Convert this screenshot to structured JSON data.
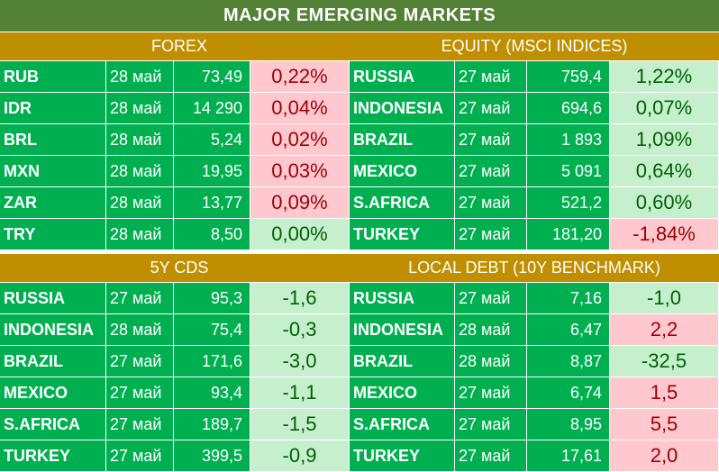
{
  "title": "MAJOR   EMERGING MARKETS",
  "colors": {
    "title_bg": "#538135",
    "header_bg": "#bf8f00",
    "cell_bg": "#00b050",
    "negative_bg": "#ffc7ce",
    "negative_text": "#9c0006",
    "positive_bg": "#c6efce",
    "positive_text": "#006100"
  },
  "sections": [
    {
      "header": "FOREX",
      "rows": [
        {
          "name": "RUB",
          "date": "28 май",
          "value": "73,49",
          "change": "0,22%",
          "state": "neg"
        },
        {
          "name": "IDR",
          "date": "28 май",
          "value": "14 290",
          "change": "0,04%",
          "state": "neg"
        },
        {
          "name": "BRL",
          "date": "28 май",
          "value": "5,24",
          "change": "0,02%",
          "state": "neg"
        },
        {
          "name": "MXN",
          "date": "28 май",
          "value": "19,95",
          "change": "0,03%",
          "state": "neg"
        },
        {
          "name": "ZAR",
          "date": "28 май",
          "value": "13,77",
          "change": "0,09%",
          "state": "neg"
        },
        {
          "name": "TRY",
          "date": "28 май",
          "value": "8,50",
          "change": "0,00%",
          "state": "pos"
        }
      ]
    },
    {
      "header": "EQUITY (MSCI INDICES)",
      "rows": [
        {
          "name": "RUSSIA",
          "date": "27 май",
          "value": "759,4",
          "change": "1,22%",
          "state": "pos"
        },
        {
          "name": "INDONESIA",
          "date": "27 май",
          "value": "694,6",
          "change": "0,07%",
          "state": "pos"
        },
        {
          "name": "BRAZIL",
          "date": "27 май",
          "value": "1 893",
          "change": "1,09%",
          "state": "pos"
        },
        {
          "name": "MEXICO",
          "date": "27 май",
          "value": "5 091",
          "change": "0,64%",
          "state": "pos"
        },
        {
          "name": "S.AFRICA",
          "date": "27 май",
          "value": "521,2",
          "change": "0,60%",
          "state": "pos"
        },
        {
          "name": "TURKEY",
          "date": "27 май",
          "value": "181,20",
          "change": "-1,84%",
          "state": "neg"
        }
      ]
    },
    {
      "header": "5Y CDS",
      "rows": [
        {
          "name": "RUSSIA",
          "date": "27 май",
          "value": "95,3",
          "change": "-1,6",
          "state": "pos"
        },
        {
          "name": "INDONESIA",
          "date": "28 май",
          "value": "75,4",
          "change": "-0,3",
          "state": "pos"
        },
        {
          "name": "BRAZIL",
          "date": "27 май",
          "value": "171,6",
          "change": "-3,0",
          "state": "pos"
        },
        {
          "name": "MEXICO",
          "date": "27 май",
          "value": "93,4",
          "change": "-1,1",
          "state": "pos"
        },
        {
          "name": "S.AFRICA",
          "date": "27 май",
          "value": "189,7",
          "change": "-1,5",
          "state": "pos"
        },
        {
          "name": "TURKEY",
          "date": "27 май",
          "value": "399,5",
          "change": "-0,9",
          "state": "pos"
        }
      ]
    },
    {
      "header": "LOCAL DEBT (10Y BENCHMARK)",
      "rows": [
        {
          "name": "RUSSIA",
          "date": "27 май",
          "value": "7,16",
          "change": "-1,0",
          "state": "pos"
        },
        {
          "name": "INDONESIA",
          "date": "28 май",
          "value": "6,47",
          "change": "2,2",
          "state": "neg"
        },
        {
          "name": "BRAZIL",
          "date": "28 май",
          "value": "8,87",
          "change": "-32,5",
          "state": "pos"
        },
        {
          "name": "MEXICO",
          "date": "27 май",
          "value": "6,74",
          "change": "1,5",
          "state": "neg"
        },
        {
          "name": "S.AFRICA",
          "date": "27 май",
          "value": "8,95",
          "change": "5,5",
          "state": "neg"
        },
        {
          "name": "TURKEY",
          "date": "27 май",
          "value": "17,61",
          "change": "2,0",
          "state": "neg"
        }
      ]
    }
  ]
}
